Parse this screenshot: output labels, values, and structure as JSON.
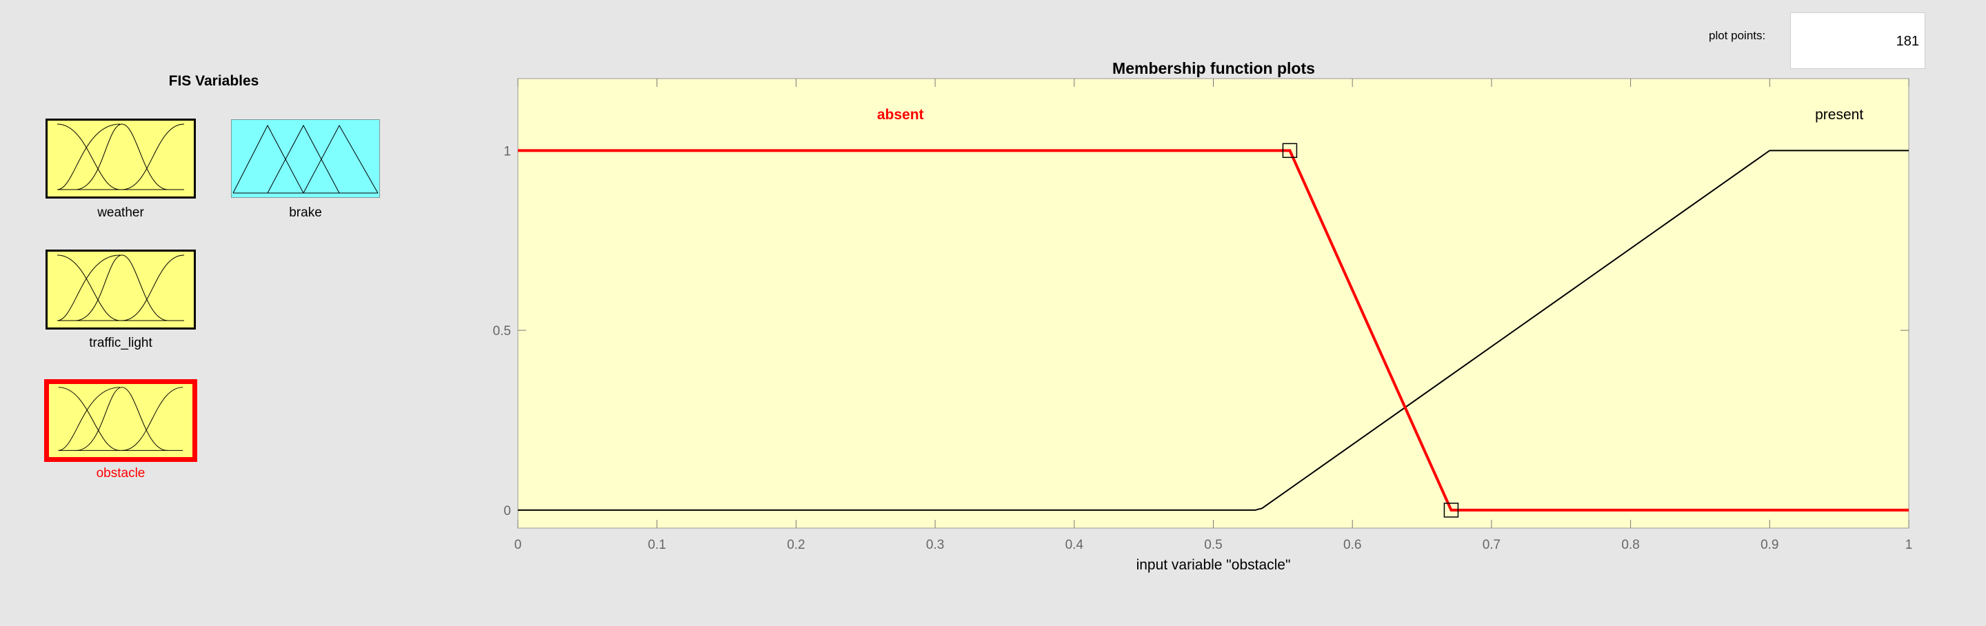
{
  "fis_panel": {
    "title": "FIS Variables",
    "variables": [
      {
        "name": "weather",
        "kind": "input",
        "selected": false
      },
      {
        "name": "brake",
        "kind": "output",
        "selected": false
      },
      {
        "name": "traffic_light",
        "kind": "input",
        "selected": false
      },
      {
        "name": "obstacle",
        "kind": "input",
        "selected": true
      }
    ]
  },
  "plot_points": {
    "label": "plot points:",
    "value": "181"
  },
  "plot": {
    "title": "Membership function plots",
    "xlabel": "input variable \"obstacle\"",
    "colors": {
      "background": "#ffffcc",
      "selected_mf": "#ff0000",
      "mf": "#000000",
      "input_var": "#ffff80",
      "output_var": "#80ffff"
    }
  },
  "chart_data": {
    "type": "line",
    "title": "Membership function plots",
    "xlabel": "input variable \"obstacle\"",
    "ylabel": "",
    "xlim": [
      0,
      1
    ],
    "ylim": [
      -0.05,
      1.2
    ],
    "x_ticks": [
      0,
      0.1,
      0.2,
      0.3,
      0.4,
      0.5,
      0.6,
      0.7,
      0.8,
      0.9,
      1
    ],
    "x_tick_labels": [
      "0",
      "0.1",
      "0.2",
      "0.3",
      "0.4",
      "0.5",
      "0.6",
      "0.7",
      "0.8",
      "0.9",
      "1"
    ],
    "y_ticks": [
      0,
      0.5,
      1
    ],
    "y_tick_labels": [
      "0",
      "0.5",
      "1"
    ],
    "grid": false,
    "series": [
      {
        "name": "absent",
        "selected": true,
        "label_at": [
          0.275,
          1.1
        ],
        "x": [
          0,
          0.555,
          0.671,
          1
        ],
        "y": [
          1,
          1,
          0,
          0
        ],
        "handles": [
          [
            0.555,
            1
          ],
          [
            0.671,
            0
          ]
        ]
      },
      {
        "name": "present",
        "selected": false,
        "label_at": [
          0.95,
          1.1
        ],
        "x": [
          0,
          0.53,
          0.535,
          0.9,
          1
        ],
        "y": [
          0,
          0,
          0.005,
          1,
          1
        ]
      }
    ]
  }
}
